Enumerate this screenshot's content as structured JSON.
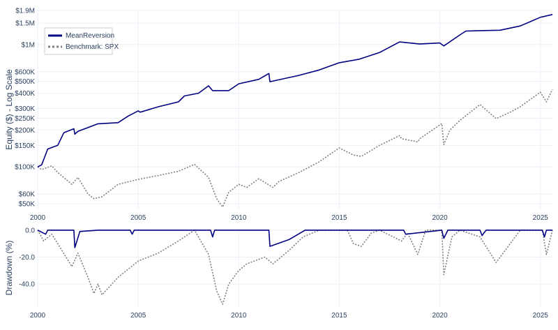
{
  "chart_data": [
    {
      "type": "line",
      "panel": "equity",
      "ylabel": "Equity ($) - Log Scale",
      "yscale": "log",
      "ylim": [
        45000,
        1950000
      ],
      "xlim": [
        2000,
        2025.6
      ],
      "grid": true,
      "legend_position": "top-left",
      "x_ticks": [
        "2000",
        "2005",
        "2010",
        "2015",
        "2020",
        "2025"
      ],
      "y_ticks": [
        {
          "value": 1900000,
          "label": "$1.9M"
        },
        {
          "value": 1500000,
          "label": "$1.5M"
        },
        {
          "value": 1000000,
          "label": "$1M"
        },
        {
          "value": 600000,
          "label": "$600K"
        },
        {
          "value": 500000,
          "label": "$500K"
        },
        {
          "value": 400000,
          "label": "$400K"
        },
        {
          "value": 300000,
          "label": "$300K"
        },
        {
          "value": 250000,
          "label": "$250K"
        },
        {
          "value": 200000,
          "label": "$200K"
        },
        {
          "value": 150000,
          "label": "$150K"
        },
        {
          "value": 100000,
          "label": "$100K"
        },
        {
          "value": 60000,
          "label": "$60K"
        },
        {
          "value": 50000,
          "label": "$50K"
        }
      ],
      "series": [
        {
          "name": "MeanReversion",
          "color": "#000080",
          "dash": "solid",
          "x": [
            2000,
            2000.2,
            2000.5,
            2001,
            2001.3,
            2001.8,
            2001.85,
            2002,
            2003,
            2004,
            2004.5,
            2005,
            2005.1,
            2006,
            2007,
            2007.3,
            2008,
            2008.5,
            2008.7,
            2009.5,
            2010,
            2011,
            2011.5,
            2011.55,
            2013,
            2014,
            2015,
            2016,
            2017,
            2018,
            2019,
            2020,
            2020.2,
            2021,
            2021.3,
            2022,
            2023,
            2024,
            2025,
            2025.6
          ],
          "y": [
            100000,
            104000,
            140000,
            150000,
            190000,
            205000,
            185000,
            195000,
            225000,
            230000,
            260000,
            287000,
            280000,
            310000,
            340000,
            380000,
            400000,
            460000,
            420000,
            420000,
            478000,
            520000,
            580000,
            497000,
            560000,
            620000,
            710000,
            760000,
            860000,
            1050000,
            1010000,
            1030000,
            975000,
            1200000,
            1290000,
            1300000,
            1310000,
            1420000,
            1670000,
            1760000
          ]
        },
        {
          "name": "Benchmark: SPX",
          "color": "#808080",
          "dash": "dot",
          "x": [
            2000,
            2000.2,
            2000.7,
            2001,
            2001.7,
            2002,
            2002.5,
            2002.8,
            2003.2,
            2004,
            2005,
            2006,
            2007,
            2007.8,
            2008.5,
            2008.9,
            2009.2,
            2009.5,
            2010,
            2010.4,
            2011,
            2011.7,
            2012,
            2013,
            2014,
            2015,
            2015.7,
            2016.1,
            2017,
            2018,
            2018.1,
            2018.9,
            2019,
            2020.1,
            2020.2,
            2020.5,
            2021,
            2022,
            2022.8,
            2023.5,
            2024,
            2025,
            2025.3,
            2025.6
          ],
          "y": [
            100000,
            95000,
            102000,
            90000,
            72000,
            82000,
            60000,
            55000,
            57000,
            72000,
            79000,
            85000,
            92000,
            105000,
            82000,
            55000,
            47000,
            62000,
            72000,
            68000,
            80000,
            68000,
            76000,
            90000,
            110000,
            143000,
            125000,
            122000,
            150000,
            180000,
            170000,
            160000,
            170000,
            226000,
            152000,
            200000,
            240000,
            323000,
            248000,
            280000,
            310000,
            408000,
            340000,
            430000
          ]
        }
      ]
    },
    {
      "type": "line",
      "panel": "drawdown",
      "ylabel": "Drawdown (%)",
      "ylim": [
        -57,
        1.5
      ],
      "xlim": [
        2000,
        2025.6
      ],
      "grid": true,
      "x_ticks": [
        "2000",
        "2005",
        "2010",
        "2015",
        "2020",
        "2025"
      ],
      "y_ticks": [
        {
          "value": 0,
          "label": "0.0"
        },
        {
          "value": -20,
          "label": "-20.0"
        },
        {
          "value": -40,
          "label": "-40.0"
        }
      ],
      "series": [
        {
          "name": "MeanReversion",
          "color": "#000080",
          "dash": "solid",
          "x": [
            2000,
            2000.4,
            2000.5,
            2001,
            2001.8,
            2001.85,
            2002.1,
            2003,
            2004.6,
            2004.7,
            2004.8,
            2008.6,
            2008.7,
            2008.8,
            2011.5,
            2011.55,
            2012.5,
            2013.3,
            2018.2,
            2018.3,
            2020.1,
            2020.2,
            2020.4,
            2022,
            2022.1,
            2022.3,
            2025.1,
            2025.2,
            2025.3,
            2025.6
          ],
          "y": [
            0,
            -3,
            0,
            0,
            0,
            -13,
            -1,
            0,
            0,
            -3,
            0,
            0,
            -5,
            0,
            0,
            -12,
            -7,
            0,
            0,
            -3,
            0,
            -6,
            0,
            0,
            -4,
            0,
            0,
            -5,
            0,
            0
          ]
        },
        {
          "name": "Benchmark: SPX",
          "color": "#808080",
          "dash": "dot",
          "x": [
            2000,
            2000.3,
            2000.7,
            2001,
            2001.7,
            2002,
            2002.5,
            2002.8,
            2003,
            2003.2,
            2004,
            2005,
            2006,
            2007,
            2007.8,
            2008.5,
            2008.9,
            2009.2,
            2009.5,
            2010,
            2010.4,
            2011.3,
            2011.7,
            2012.5,
            2013.2,
            2014,
            2015.4,
            2015.7,
            2016.1,
            2016.6,
            2017,
            2018.1,
            2018.4,
            2018.9,
            2019.3,
            2020.1,
            2020.2,
            2020.6,
            2021,
            2022,
            2022.8,
            2023.5,
            2024,
            2025.1,
            2025.3,
            2025.6
          ],
          "y": [
            0,
            -8,
            -3,
            -10,
            -27,
            -17,
            -35,
            -47,
            -40,
            -48,
            -35,
            -23,
            -17,
            -8,
            0,
            -18,
            -45,
            -55,
            -40,
            -30,
            -25,
            -20,
            -25,
            -15,
            -5,
            0,
            0,
            -10,
            -12,
            -2,
            0,
            -8,
            -2,
            -18,
            0,
            0,
            -33,
            -5,
            0,
            -5,
            -24,
            -10,
            0,
            0,
            -18,
            0
          ]
        }
      ]
    }
  ]
}
